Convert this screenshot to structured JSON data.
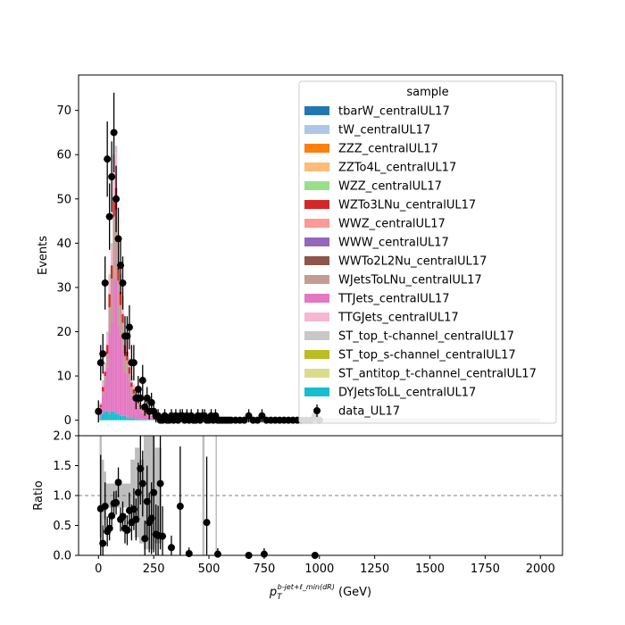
{
  "chart_data": [
    {
      "type": "bar",
      "panel": "main",
      "stacked": true,
      "ylabel": "Events",
      "ylim": [
        -3.5,
        78
      ],
      "xlim": [
        -90,
        2100
      ],
      "yticks": [
        0,
        10,
        20,
        30,
        40,
        50,
        60,
        70
      ],
      "legend": {
        "title": "sample",
        "placement": "top-right",
        "entries": [
          {
            "label": "tbarW_centralUL17",
            "color": "#1f77b4"
          },
          {
            "label": "tW_centralUL17",
            "color": "#aec7e8"
          },
          {
            "label": "ZZZ_centralUL17",
            "color": "#ff7f0e"
          },
          {
            "label": "ZZTo4L_centralUL17",
            "color": "#ffbb78"
          },
          {
            "label": "WZZ_centralUL17",
            "color": "#98df8a"
          },
          {
            "label": "WZTo3LNu_centralUL17",
            "color": "#d62728"
          },
          {
            "label": "WWZ_centralUL17",
            "color": "#ff9896"
          },
          {
            "label": "WWW_centralUL17",
            "color": "#9467bd"
          },
          {
            "label": "WWTo2L2Nu_centralUL17",
            "color": "#8c564b"
          },
          {
            "label": "WJetsToLNu_centralUL17",
            "color": "#c49c94"
          },
          {
            "label": "TTJets_centralUL17",
            "color": "#e377c2"
          },
          {
            "label": "TTGJets_centralUL17",
            "color": "#f7b6d2"
          },
          {
            "label": "ST_top_t-channel_centralUL17",
            "color": "#c7c7c7"
          },
          {
            "label": "ST_top_s-channel_centralUL17",
            "color": "#bcbd22"
          },
          {
            "label": "ST_antitop_t-channel_centralUL17",
            "color": "#dbdb8d"
          },
          {
            "label": "DYJetsToLL_centralUL17",
            "color": "#17becf"
          },
          {
            "label": "data_UL17",
            "color": "#000000",
            "marker": "errorbar"
          }
        ]
      },
      "data": {
        "x": [
          0,
          10,
          20,
          30,
          40,
          50,
          60,
          70,
          80,
          90,
          100,
          110,
          120,
          130,
          140,
          150,
          160,
          170,
          180,
          190,
          200,
          210,
          220,
          230,
          240,
          250,
          260,
          270,
          280,
          290,
          300,
          310,
          320,
          330,
          340,
          350,
          360,
          370,
          380,
          390,
          400,
          410,
          420,
          430,
          440,
          450,
          460,
          470,
          480,
          490,
          500,
          510,
          520,
          530,
          540,
          550,
          560,
          570,
          580,
          590,
          600,
          620,
          640,
          660,
          680,
          700,
          720,
          740,
          760,
          780,
          800,
          820,
          840,
          860,
          880,
          900,
          920,
          940,
          960,
          980,
          1000
        ],
        "y": [
          2,
          13,
          15,
          31,
          59,
          46,
          55,
          65,
          50,
          41,
          35,
          31,
          19,
          19,
          21,
          13,
          13,
          5,
          7,
          5,
          9,
          3,
          5,
          2,
          4,
          2,
          1,
          1,
          0,
          0,
          1,
          0,
          0,
          1,
          0,
          1,
          0,
          1,
          1,
          0,
          1,
          0,
          1,
          0,
          0,
          1,
          0,
          1,
          1,
          0,
          0,
          1,
          0,
          1,
          0,
          0,
          0,
          0,
          0,
          0,
          0,
          0,
          0,
          0,
          1,
          0,
          0,
          1,
          0,
          0,
          0,
          0,
          0,
          0,
          0,
          0,
          0,
          0,
          0,
          1,
          0
        ],
        "yerr": [
          2.5,
          4,
          4.5,
          6,
          8.5,
          7.5,
          8,
          9,
          7.5,
          7,
          6.5,
          6,
          4.5,
          4.5,
          5,
          4,
          4,
          2.5,
          3,
          2.5,
          3.5,
          2,
          2.5,
          1.8,
          2.2,
          1.8,
          1.5,
          1.5,
          0,
          0,
          1.5,
          0,
          0,
          1.5,
          0,
          1.5,
          0,
          1.5,
          1.5,
          0,
          1.5,
          0,
          1.5,
          0,
          0,
          1.5,
          0,
          1.5,
          1.5,
          0,
          0,
          1.5,
          0,
          1.5,
          0,
          0,
          0,
          0,
          0,
          0,
          0,
          0,
          0,
          0,
          1.5,
          0,
          0,
          1.5,
          0,
          0,
          0,
          0,
          0,
          0,
          0,
          0,
          0,
          0,
          0,
          1.5,
          0
        ]
      },
      "mc": {
        "bins": [
          10,
          20,
          30,
          40,
          50,
          60,
          70,
          80,
          90,
          100,
          110,
          120,
          130,
          140,
          150,
          160,
          170,
          180,
          190,
          200,
          210,
          220,
          230,
          240,
          250,
          260,
          270,
          280,
          290
        ],
        "total": [
          4,
          9,
          13,
          20,
          33,
          40,
          60,
          62,
          40,
          33,
          28,
          20,
          18,
          14,
          10,
          8,
          6,
          5,
          4,
          3,
          2.5,
          2,
          1.6,
          1.2,
          1,
          0.8,
          0.6,
          0.5,
          0.4
        ],
        "components": {
          "DYJetsToLL_centralUL17": [
            0.5,
            1.5,
            2,
            2,
            1.5,
            2,
            2,
            1.5,
            1.5,
            1,
            1,
            1,
            0.5,
            0.5,
            0.5,
            0.5,
            0.3,
            0.3,
            0.2,
            0.2,
            0.2,
            0.1,
            0.1,
            0.1,
            0.1,
            0.1,
            0.1,
            0.1,
            0.1
          ],
          "TTJets_centralUL17": [
            2,
            4,
            6,
            10,
            18,
            20,
            30,
            30,
            20,
            18,
            15,
            10,
            10,
            8,
            5,
            4,
            3,
            2.5,
            2,
            1.5,
            1.2,
            1,
            0.8,
            0.6,
            0.5,
            0.4,
            0.3,
            0.2,
            0.2
          ],
          "WJetsToLNu_centralUL17": [
            0.5,
            1,
            2,
            3,
            6,
            10,
            14,
            16,
            10,
            7,
            6,
            4,
            3,
            2,
            2,
            1.5,
            1,
            1,
            0.8,
            0.6,
            0.5,
            0.4,
            0.3,
            0.2,
            0.2,
            0.1,
            0.1,
            0.1,
            0
          ],
          "WZTo3LNu_centralUL17": [
            0.5,
            1,
            1,
            2,
            3,
            3,
            4,
            5,
            3,
            3,
            2,
            2,
            2,
            1.5,
            1,
            1,
            0.8,
            0.6,
            0.5,
            0.3,
            0.3,
            0.2,
            0.2,
            0.1,
            0.1,
            0.1,
            0.1,
            0.05,
            0.05
          ],
          "TTGJets_centralUL17": [
            0.5,
            1,
            1.5,
            2,
            3,
            4,
            8,
            8,
            4,
            3,
            3,
            2,
            1.5,
            1.5,
            1,
            0.8,
            0.6,
            0.5,
            0.4,
            0.3,
            0.2,
            0.2,
            0.1,
            0.1,
            0.05,
            0.05,
            0,
            0.05,
            0.05
          ],
          "ST_top_t-channel_centralUL17": [
            0,
            0.5,
            0.5,
            1,
            1.5,
            1,
            2,
            1.5,
            1.5,
            1,
            1,
            1,
            1,
            0.5,
            0.5,
            0.2,
            0.3,
            0.1,
            0.1,
            0.1,
            0.1,
            0.1,
            0.1,
            0.1,
            0.05,
            0.05,
            0,
            0.05,
            0
          ]
        },
        "flat_band_from": 290,
        "flat_band_to": 2000
      }
    },
    {
      "type": "scatter",
      "panel": "ratio",
      "ylabel": "Ratio",
      "xlabel": "p_T^{b-jet+ℓ_min(dR)} (GeV)",
      "ylim": [
        0,
        2
      ],
      "xlim": [
        -90,
        2100
      ],
      "yticks": [
        "0.0",
        "0.5",
        "1.0",
        "1.5",
        "2.0"
      ],
      "xticks": [
        0,
        250,
        500,
        750,
        1000,
        1250,
        1500,
        1750,
        2000
      ],
      "reference_line": 1.0,
      "data": {
        "x": [
          10,
          20,
          30,
          40,
          50,
          60,
          70,
          80,
          90,
          100,
          110,
          120,
          130,
          140,
          150,
          160,
          170,
          180,
          190,
          200,
          210,
          220,
          230,
          240,
          250,
          260,
          270,
          280,
          290,
          330,
          370,
          410,
          490,
          540,
          680,
          750,
          980
        ],
        "y": [
          0.78,
          0.2,
          0.82,
          0.4,
          0.45,
          0.66,
          0.87,
          0.88,
          1.22,
          0.6,
          0.65,
          0.45,
          0.42,
          0.75,
          0.55,
          0.77,
          0.6,
          1.05,
          1.45,
          1.2,
          0.28,
          0.9,
          0.55,
          0.62,
          1.05,
          0.35,
          0.33,
          1.2,
          0.32,
          0.13,
          0.82,
          0.03,
          0.55,
          0.02,
          0,
          0.02,
          0
        ],
        "yerr": [
          0.9,
          0.3,
          0.4,
          0.25,
          0.2,
          0.2,
          0.2,
          0.2,
          0.25,
          0.2,
          0.25,
          0.25,
          0.25,
          0.3,
          0.3,
          0.35,
          0.35,
          0.5,
          0.6,
          0.55,
          0.3,
          0.6,
          0.5,
          0.6,
          1,
          0.5,
          0.5,
          1.1,
          0.5,
          0.2,
          1,
          0.1,
          1.1,
          0.1,
          0,
          0.1,
          0
        ],
        "syst_band": [
          {
            "x0": 5,
            "x1": 15,
            "lo": 0.3,
            "hi": 2.2
          },
          {
            "x0": 15,
            "x1": 25,
            "lo": 0.5,
            "hi": 1.6
          },
          {
            "x0": 25,
            "x1": 35,
            "lo": 0.6,
            "hi": 1.4
          },
          {
            "x0": 35,
            "x1": 145,
            "lo": 0.8,
            "hi": 1.2
          },
          {
            "x0": 145,
            "x1": 165,
            "lo": 0.5,
            "hi": 1.6
          },
          {
            "x0": 165,
            "x1": 185,
            "lo": 0.3,
            "hi": 1.8
          },
          {
            "x0": 185,
            "x1": 205,
            "lo": 0.2,
            "hi": 1.6
          },
          {
            "x0": 205,
            "x1": 255,
            "lo": 0.1,
            "hi": 2.2
          },
          {
            "x0": 255,
            "x1": 285,
            "lo": 0.2,
            "hi": 1.8
          },
          {
            "x0": 470,
            "x1": 480,
            "lo": 0,
            "hi": 2.2
          },
          {
            "x0": 530,
            "x1": 535,
            "lo": 0,
            "hi": 2.2
          }
        ]
      }
    }
  ]
}
